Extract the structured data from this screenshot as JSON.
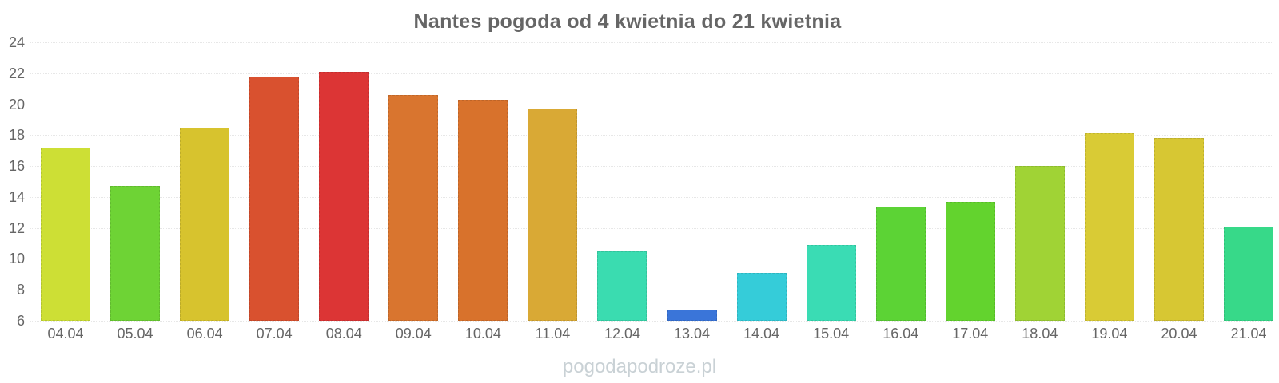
{
  "watermark": "pogodapodroze.pl",
  "colors": {
    "background": "#ffffff",
    "title_text": "#666666",
    "axis_text": "#666666",
    "axis_line": "#c8d0d4",
    "gridline": "#e7e7e7",
    "watermark_text": "#c9d1d5"
  },
  "chart_data": {
    "type": "bar",
    "title": "Nantes pogoda od 4 kwietnia do 21 kwietnia",
    "categories": [
      "04.04",
      "05.04",
      "06.04",
      "07.04",
      "08.04",
      "09.04",
      "10.04",
      "11.04",
      "12.04",
      "13.04",
      "14.04",
      "15.04",
      "16.04",
      "17.04",
      "18.04",
      "19.04",
      "20.04",
      "21.04"
    ],
    "values": [
      17.2,
      14.7,
      18.5,
      21.8,
      22.1,
      20.6,
      20.3,
      19.7,
      10.5,
      6.7,
      9.1,
      10.9,
      13.4,
      13.7,
      16.0,
      18.1,
      17.8,
      12.1
    ],
    "bar_colors": [
      "#cddf35",
      "#6ed335",
      "#d7c32e",
      "#d9512f",
      "#dc3535",
      "#d9752f",
      "#d8722c",
      "#d9a935",
      "#3adcb0",
      "#3a75d9",
      "#35ccd9",
      "#3adcb4",
      "#5cd335",
      "#63d32e",
      "#a0d335",
      "#d9cb35",
      "#d7c733",
      "#37d989"
    ],
    "xlabel": "",
    "ylabel": "",
    "ylim": [
      6,
      24
    ],
    "yticks": [
      24,
      22,
      20,
      18,
      16,
      14,
      12,
      10,
      8,
      6
    ],
    "grid": "horizontal-dotted",
    "legend": "none"
  }
}
